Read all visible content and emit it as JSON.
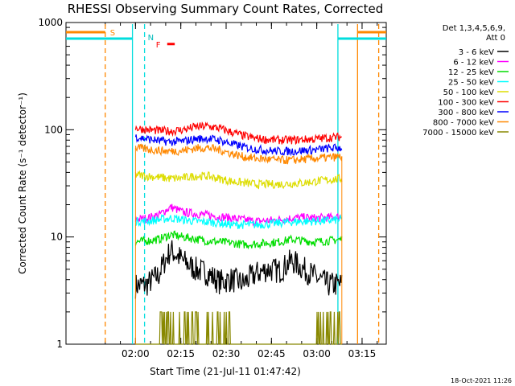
{
  "chart_data": {
    "type": "line",
    "title": "RHESSI Observing Summary Count Rates, Corrected",
    "ylabel": "Corrected Count Rate (s⁻¹ detector⁻¹)",
    "xlabel": "Start Time (21-Jul-11 01:47:42)",
    "y_scale": "log",
    "ylim": [
      1,
      1000
    ],
    "xlim_minutes_after_start": [
      -10.7,
      95.3
    ],
    "x_tick_labels": [
      "02:00",
      "02:15",
      "02:30",
      "02:45",
      "03:00",
      "03:15"
    ],
    "x_tick_minutes": [
      12.3,
      27.3,
      42.3,
      57.3,
      72.3,
      87.3
    ],
    "y_tick_labels": [
      "1",
      "10",
      "100",
      "1000"
    ],
    "y_tick_values": [
      1,
      10,
      100,
      1000
    ],
    "legend_title_lines": [
      "Det 1,3,4,5,6,9,",
      "Att 0"
    ],
    "legend_position": "top-right",
    "data_window_minutes": [
      12.3,
      80.6
    ],
    "series": [
      {
        "name": "3 - 6 keV",
        "color": "#000000",
        "x": [
          12.3,
          16,
          20,
          24,
          28,
          32,
          36,
          40,
          44,
          48,
          52,
          56,
          60,
          64,
          68,
          72,
          76,
          80.6
        ],
        "y": [
          3.5,
          3.6,
          4.4,
          7.5,
          6.0,
          5.0,
          4.6,
          3.8,
          4.0,
          3.7,
          4.5,
          5.0,
          4.8,
          6.0,
          5.0,
          4.2,
          3.6,
          3.6
        ]
      },
      {
        "name": "6 - 12 keV",
        "color": "#ff00ff",
        "x": [
          12.3,
          16,
          20,
          24,
          28,
          32,
          36,
          40,
          44,
          48,
          52,
          56,
          60,
          64,
          68,
          72,
          76,
          80.6
        ],
        "y": [
          14.5,
          15.0,
          16.0,
          19.0,
          17.0,
          16.5,
          16.0,
          15.5,
          15.0,
          14.5,
          14.0,
          14.2,
          14.5,
          15.0,
          15.2,
          15.0,
          15.2,
          15.5
        ]
      },
      {
        "name": "12 - 25 keV",
        "color": "#00dd00",
        "x": [
          12.3,
          16,
          20,
          24,
          28,
          32,
          36,
          40,
          44,
          48,
          52,
          56,
          60,
          64,
          68,
          72,
          76,
          80.6
        ],
        "y": [
          9.0,
          9.2,
          9.5,
          10.5,
          10.0,
          9.6,
          9.2,
          9.0,
          8.8,
          8.5,
          8.6,
          8.8,
          9.0,
          9.5,
          9.2,
          9.0,
          9.2,
          9.5
        ]
      },
      {
        "name": "25 - 50 keV",
        "color": "#00ffff",
        "x": [
          12.3,
          16,
          20,
          24,
          28,
          32,
          36,
          40,
          44,
          48,
          52,
          56,
          60,
          64,
          68,
          72,
          76,
          80.6
        ],
        "y": [
          14.0,
          14.0,
          14.5,
          15.0,
          14.5,
          14.0,
          13.8,
          13.5,
          13.0,
          13.0,
          13.0,
          13.2,
          13.5,
          13.8,
          14.0,
          14.0,
          14.2,
          14.5
        ]
      },
      {
        "name": "50 - 100 keV",
        "color": "#dddd00",
        "x": [
          12.3,
          16,
          20,
          24,
          28,
          32,
          36,
          40,
          44,
          48,
          52,
          56,
          60,
          64,
          68,
          72,
          76,
          80.6
        ],
        "y": [
          38,
          37,
          36,
          35,
          35.5,
          37,
          37,
          35,
          33,
          32,
          31,
          31,
          31,
          31.5,
          32,
          33,
          34,
          35
        ]
      },
      {
        "name": "100 - 300 keV",
        "color": "#ff0000",
        "x": [
          12.3,
          16,
          20,
          24,
          28,
          32,
          36,
          40,
          44,
          48,
          52,
          56,
          60,
          64,
          68,
          72,
          76,
          80.6
        ],
        "y": [
          104,
          100,
          98,
          97,
          100,
          106,
          108,
          103,
          95,
          88,
          83,
          81,
          80,
          80,
          81,
          82,
          84,
          86
        ]
      },
      {
        "name": "300 - 800 keV",
        "color": "#0000ff",
        "x": [
          12.3,
          16,
          20,
          24,
          28,
          32,
          36,
          40,
          44,
          48,
          52,
          56,
          60,
          64,
          68,
          72,
          76,
          80.6
        ],
        "y": [
          86,
          82,
          79,
          77,
          78,
          82,
          83,
          80,
          74,
          69,
          66,
          64,
          63,
          63,
          64,
          65,
          67,
          68
        ]
      },
      {
        "name": "800 - 7000 keV",
        "color": "#ff8800",
        "x": [
          12.3,
          16,
          20,
          24,
          28,
          32,
          36,
          40,
          44,
          48,
          52,
          56,
          60,
          64,
          68,
          72,
          76,
          80.6
        ],
        "y": [
          68,
          66,
          64,
          63,
          64,
          67,
          68,
          65,
          60,
          56,
          54,
          53,
          52,
          52,
          53,
          54,
          55,
          56
        ]
      },
      {
        "name": "7000 - 15000 keV",
        "color": "#888800",
        "x": [
          12.3,
          16,
          20,
          24,
          28,
          32,
          36,
          40,
          44,
          48,
          52,
          56,
          60,
          64,
          68,
          72,
          76,
          80.6
        ],
        "y": [
          1,
          1,
          1,
          1.5,
          1.8,
          1.6,
          1.5,
          1.4,
          1,
          1,
          1,
          1,
          1,
          1,
          1,
          1,
          1.6,
          1.4
        ]
      }
    ],
    "vertical_markers": [
      {
        "label": "S",
        "color": "#ff8800",
        "style": "dashed",
        "x": 2.3
      },
      {
        "label": "N",
        "color": "#00dddd",
        "style": "dashed",
        "x": 15.3
      },
      {
        "label": "",
        "color": "#00dddd",
        "style": "solid",
        "x": 11.3
      },
      {
        "label": "",
        "color": "#00dddd",
        "style": "solid",
        "x": 79.3
      },
      {
        "label": "",
        "color": "#ff8800",
        "style": "solid",
        "x": 85.8
      },
      {
        "label": "",
        "color": "#ff8800",
        "style": "dashed",
        "x": 92.8
      }
    ],
    "flare_marker": {
      "label": "F",
      "color": "#ff0000",
      "x_range": [
        22.8,
        25.3
      ],
      "y": 630
    },
    "footer_timestamp": "18-Oct-2021 11:26"
  }
}
